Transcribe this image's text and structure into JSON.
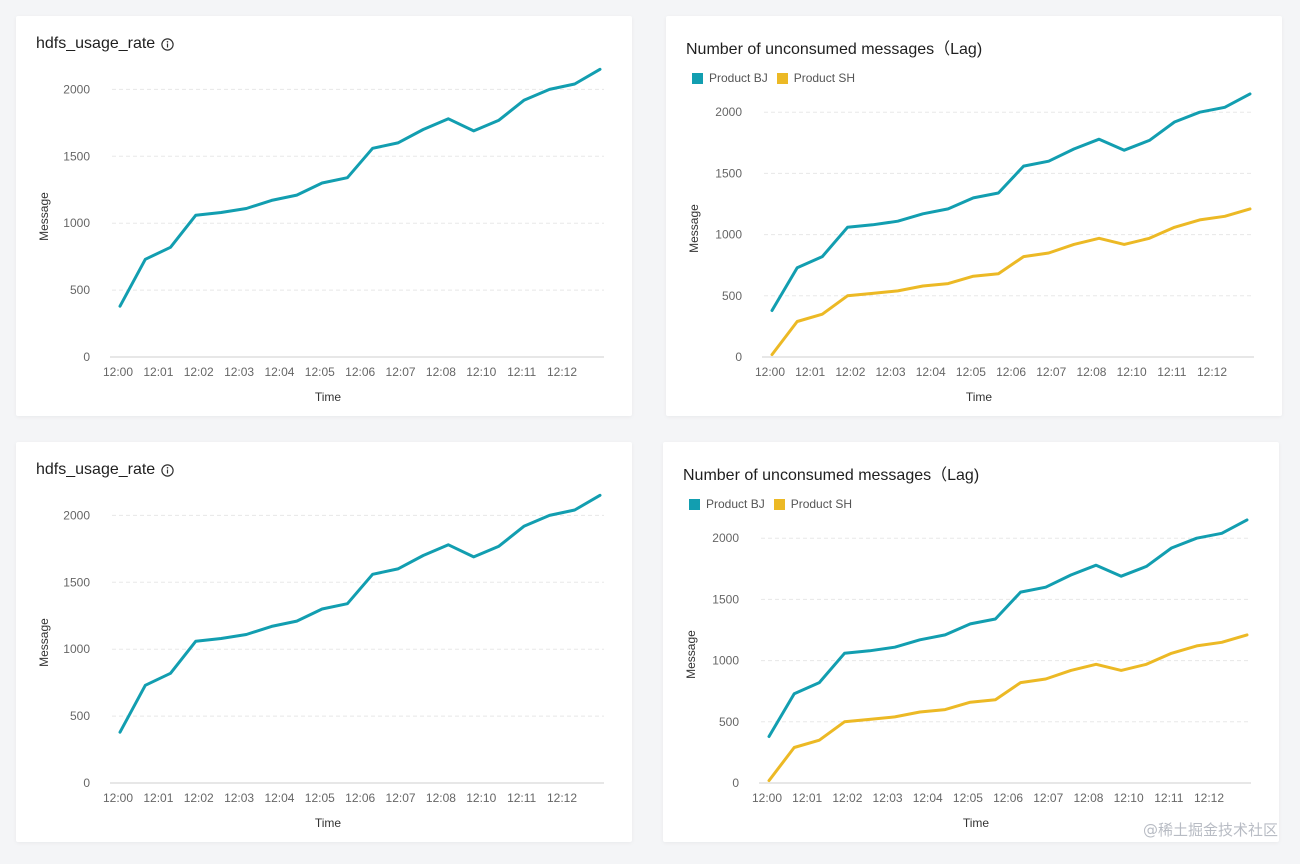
{
  "colors": {
    "teal": "#129eb0",
    "gold": "#ecb925",
    "grid": "#e8e8e8",
    "axis": "#cfcfcf"
  },
  "watermark": "@稀土掘金技术社区",
  "chart_data": [
    {
      "type": "line",
      "title": "hdfs_usage_rate",
      "has_info_icon": true,
      "xlabel": "Time",
      "ylabel": "Message",
      "x_ticks": [
        "12:00",
        "12:01",
        "12:02",
        "12:03",
        "12:04",
        "12:05",
        "12:06",
        "12:07",
        "12:08",
        "12:10",
        "12:11",
        "12:12"
      ],
      "y_ticks": [
        0,
        500,
        1000,
        1500,
        2000
      ],
      "ylim": [
        0,
        2100
      ],
      "grid": true,
      "legend": null,
      "series": [
        {
          "color": "teal",
          "values": [
            380,
            730,
            820,
            1060,
            1080,
            1110,
            1170,
            1210,
            1300,
            1340,
            1560,
            1600,
            1700,
            1780,
            1690,
            1770,
            1920,
            2000,
            2040,
            2150
          ]
        }
      ]
    },
    {
      "type": "line",
      "title": "Number of unconsumed messages（Lag)",
      "has_info_icon": false,
      "xlabel": "Time",
      "ylabel": "Message",
      "x_ticks": [
        "12:00",
        "12:01",
        "12:02",
        "12:03",
        "12:04",
        "12:05",
        "12:06",
        "12:07",
        "12:08",
        "12:10",
        "12:11",
        "12:12"
      ],
      "y_ticks": [
        0,
        500,
        1000,
        1500,
        2000
      ],
      "ylim": [
        0,
        2100
      ],
      "grid": true,
      "legend": "top-left",
      "series": [
        {
          "name": "Product BJ",
          "color": "teal",
          "values": [
            380,
            730,
            820,
            1060,
            1080,
            1110,
            1170,
            1210,
            1300,
            1340,
            1560,
            1600,
            1700,
            1780,
            1690,
            1770,
            1920,
            2000,
            2040,
            2150
          ]
        },
        {
          "name": "Product SH",
          "color": "gold",
          "values": [
            20,
            290,
            350,
            500,
            520,
            540,
            580,
            600,
            660,
            680,
            820,
            850,
            920,
            970,
            920,
            970,
            1060,
            1120,
            1150,
            1210
          ]
        }
      ]
    },
    {
      "type": "line",
      "title": "hdfs_usage_rate",
      "has_info_icon": true,
      "xlabel": "Time",
      "ylabel": "Message",
      "x_ticks": [
        "12:00",
        "12:01",
        "12:02",
        "12:03",
        "12:04",
        "12:05",
        "12:06",
        "12:07",
        "12:08",
        "12:10",
        "12:11",
        "12:12"
      ],
      "y_ticks": [
        0,
        500,
        1000,
        1500,
        2000
      ],
      "ylim": [
        0,
        2100
      ],
      "grid": true,
      "legend": null,
      "series": [
        {
          "color": "teal",
          "values": [
            380,
            730,
            820,
            1060,
            1080,
            1110,
            1170,
            1210,
            1300,
            1340,
            1560,
            1600,
            1700,
            1780,
            1690,
            1770,
            1920,
            2000,
            2040,
            2150
          ]
        }
      ]
    },
    {
      "type": "line",
      "title": "Number of unconsumed messages（Lag)",
      "has_info_icon": false,
      "xlabel": "Time",
      "ylabel": "Message",
      "x_ticks": [
        "12:00",
        "12:01",
        "12:02",
        "12:03",
        "12:04",
        "12:05",
        "12:06",
        "12:07",
        "12:08",
        "12:10",
        "12:11",
        "12:12"
      ],
      "y_ticks": [
        0,
        500,
        1000,
        1500,
        2000
      ],
      "ylim": [
        0,
        2100
      ],
      "grid": true,
      "legend": "top-left",
      "series": [
        {
          "name": "Product BJ",
          "color": "teal",
          "values": [
            380,
            730,
            820,
            1060,
            1080,
            1110,
            1170,
            1210,
            1300,
            1340,
            1560,
            1600,
            1700,
            1780,
            1690,
            1770,
            1920,
            2000,
            2040,
            2150
          ]
        },
        {
          "name": "Product SH",
          "color": "gold",
          "values": [
            20,
            290,
            350,
            500,
            520,
            540,
            580,
            600,
            660,
            680,
            820,
            850,
            920,
            970,
            920,
            970,
            1060,
            1120,
            1150,
            1210
          ]
        }
      ]
    }
  ]
}
